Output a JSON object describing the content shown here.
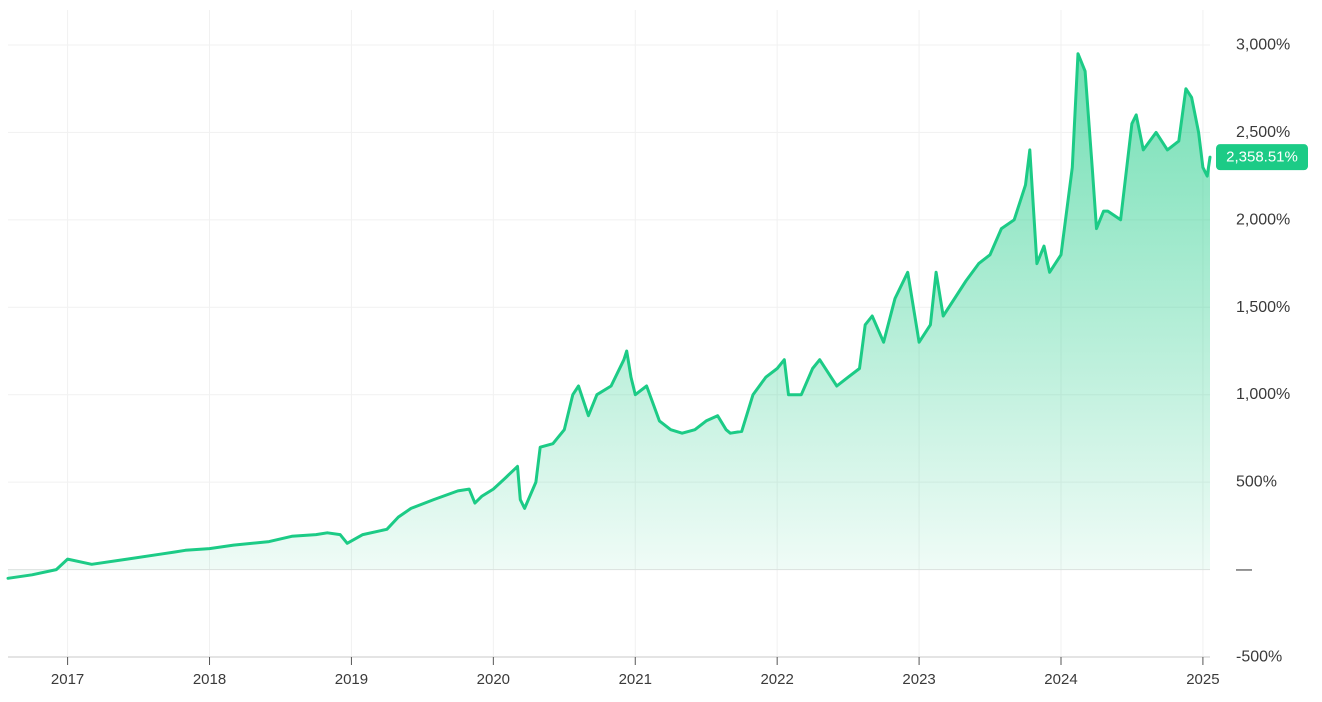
{
  "chart_data": {
    "type": "area",
    "title": "",
    "xlabel": "",
    "ylabel": "",
    "x_range": [
      2016.58,
      2025.05
    ],
    "ylim": [
      -500,
      3200
    ],
    "y_ticks": [
      {
        "value": 3000,
        "label": "3,000%"
      },
      {
        "value": 2500,
        "label": "2,500%"
      },
      {
        "value": 2000,
        "label": "2,000%"
      },
      {
        "value": 1500,
        "label": "1,500%"
      },
      {
        "value": 1000,
        "label": "1,000%"
      },
      {
        "value": 500,
        "label": "500%"
      },
      {
        "value": 0,
        "label": "—"
      },
      {
        "value": -500,
        "label": "-500%"
      }
    ],
    "x_ticks": [
      {
        "value": 2017,
        "label": "2017"
      },
      {
        "value": 2018,
        "label": "2018"
      },
      {
        "value": 2019,
        "label": "2019"
      },
      {
        "value": 2020,
        "label": "2020"
      },
      {
        "value": 2021,
        "label": "2021"
      },
      {
        "value": 2022,
        "label": "2022"
      },
      {
        "value": 2023,
        "label": "2023"
      },
      {
        "value": 2024,
        "label": "2024"
      },
      {
        "value": 2025,
        "label": "2025"
      }
    ],
    "grid": true,
    "series": [
      {
        "color": "#1ccb86",
        "fill_color": "#1ccb86",
        "last_value_label": "2,358.51%",
        "x": [
          2016.58,
          2016.75,
          2016.92,
          2017.0,
          2017.17,
          2017.42,
          2017.67,
          2017.75,
          2017.83,
          2018.0,
          2018.17,
          2018.42,
          2018.58,
          2018.75,
          2018.83,
          2018.92,
          2018.97,
          2019.08,
          2019.25,
          2019.33,
          2019.42,
          2019.58,
          2019.75,
          2019.83,
          2019.87,
          2019.92,
          2020.0,
          2020.08,
          2020.17,
          2020.19,
          2020.22,
          2020.3,
          2020.33,
          2020.42,
          2020.5,
          2020.56,
          2020.6,
          2020.67,
          2020.73,
          2020.83,
          2020.92,
          2020.94,
          2020.97,
          2021.0,
          2021.08,
          2021.17,
          2021.25,
          2021.33,
          2021.42,
          2021.5,
          2021.58,
          2021.64,
          2021.67,
          2021.75,
          2021.83,
          2021.92,
          2022.0,
          2022.05,
          2022.08,
          2022.17,
          2022.25,
          2022.3,
          2022.42,
          2022.5,
          2022.58,
          2022.62,
          2022.67,
          2022.75,
          2022.83,
          2022.92,
          2023.0,
          2023.08,
          2023.12,
          2023.17,
          2023.25,
          2023.33,
          2023.42,
          2023.5,
          2023.58,
          2023.67,
          2023.75,
          2023.78,
          2023.83,
          2023.88,
          2023.92,
          2024.0,
          2024.08,
          2024.12,
          2024.17,
          2024.22,
          2024.25,
          2024.3,
          2024.33,
          2024.42,
          2024.5,
          2024.53,
          2024.58,
          2024.67,
          2024.75,
          2024.83,
          2024.88,
          2024.92,
          2024.97,
          2025.0,
          2025.03,
          2025.05
        ],
        "y": [
          -50,
          -30,
          0,
          60,
          30,
          60,
          90,
          100,
          110,
          120,
          140,
          160,
          190,
          200,
          210,
          200,
          150,
          200,
          230,
          300,
          350,
          400,
          450,
          460,
          380,
          420,
          460,
          520,
          590,
          400,
          350,
          500,
          700,
          720,
          800,
          1000,
          1050,
          880,
          1000,
          1050,
          1200,
          1250,
          1100,
          1000,
          1050,
          850,
          800,
          780,
          800,
          850,
          880,
          800,
          780,
          790,
          1000,
          1100,
          1150,
          1200,
          1000,
          1000,
          1150,
          1200,
          1050,
          1100,
          1150,
          1400,
          1450,
          1300,
          1550,
          1700,
          1300,
          1400,
          1700,
          1450,
          1550,
          1650,
          1750,
          1800,
          1950,
          2000,
          2200,
          2400,
          1750,
          1850,
          1700,
          1800,
          2300,
          2950,
          2850,
          2300,
          1950,
          2050,
          2050,
          2000,
          2550,
          2600,
          2400,
          2500,
          2400,
          2450,
          2750,
          2700,
          2500,
          2300,
          2250,
          2358.51
        ]
      }
    ]
  }
}
